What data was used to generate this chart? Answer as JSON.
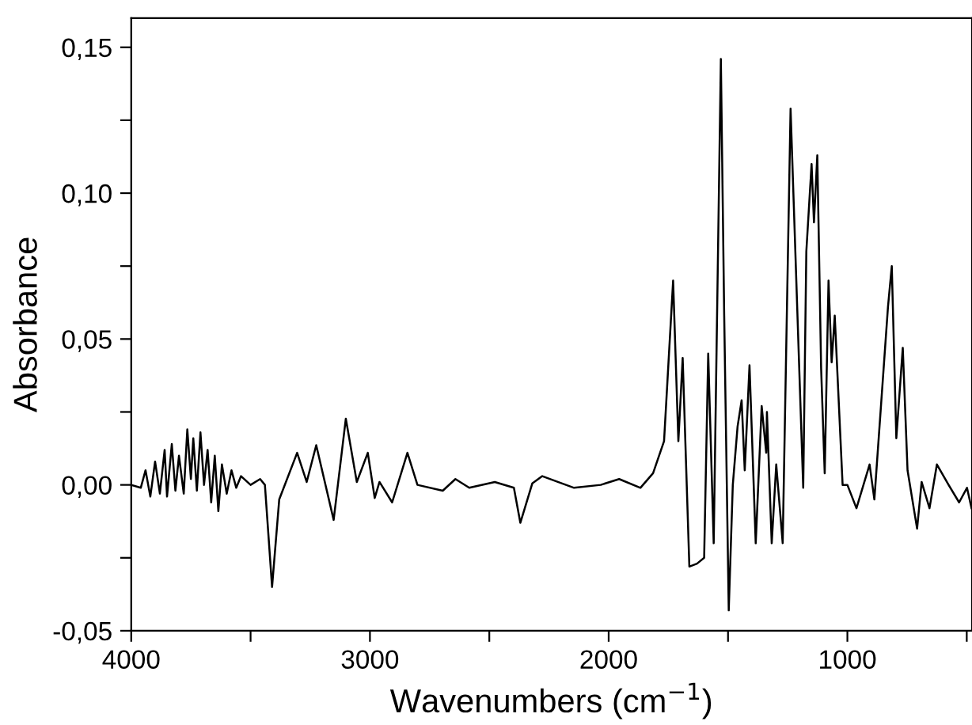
{
  "chart_data": {
    "type": "line",
    "xlabel": "Wavenumbers (cm$^{−1}$)",
    "ylabel": "Absorbance",
    "xlim": [
      4000,
      478
    ],
    "ylim": [
      -0.05,
      0.16
    ],
    "xticks": [
      {
        "value": 4000,
        "label": "4000"
      },
      {
        "value": 3500,
        "label": null
      },
      {
        "value": 3000,
        "label": "3000"
      },
      {
        "value": 2500,
        "label": null
      },
      {
        "value": 2000,
        "label": "2000"
      },
      {
        "value": 1500,
        "label": null
      },
      {
        "value": 1000,
        "label": "1000"
      },
      {
        "value": 500,
        "label": null
      }
    ],
    "yticks": [
      {
        "value": -0.05,
        "label": "-0,05"
      },
      {
        "value": -0.025,
        "label": null
      },
      {
        "value": 0,
        "label": "0,00"
      },
      {
        "value": 0.025,
        "label": null
      },
      {
        "value": 0.05,
        "label": "0,05"
      },
      {
        "value": 0.075,
        "label": null
      },
      {
        "value": 0.1,
        "label": "0,10"
      },
      {
        "value": 0.125,
        "label": null
      },
      {
        "value": 0.15,
        "label": "0,15"
      }
    ],
    "grid": false,
    "legend": false,
    "marker": "none",
    "line_style": "solid",
    "series": [
      {
        "color": "#000000",
        "x": [
          4000,
          3960,
          3940,
          3920,
          3900,
          3880,
          3860,
          3850,
          3830,
          3815,
          3800,
          3780,
          3765,
          3750,
          3740,
          3725,
          3710,
          3695,
          3680,
          3665,
          3650,
          3635,
          3620,
          3600,
          3580,
          3560,
          3540,
          3500,
          3460,
          3440,
          3410,
          3380,
          3305,
          3265,
          3225,
          3152,
          3101,
          3055,
          3009,
          2980,
          2960,
          2907,
          2843,
          2801,
          2695,
          2642,
          2584,
          2477,
          2397,
          2370,
          2320,
          2278,
          2145,
          2033,
          1956,
          1867,
          1814,
          1768,
          1730,
          1708,
          1690,
          1662,
          1630,
          1600,
          1583,
          1560,
          1530,
          1516,
          1497,
          1480,
          1460,
          1443,
          1430,
          1410,
          1384,
          1359,
          1340,
          1337,
          1317,
          1298,
          1271,
          1238,
          1185,
          1172,
          1150,
          1140,
          1126,
          1110,
          1095,
          1079,
          1066,
          1053,
          1020,
          1000,
          962,
          907,
          887,
          830,
          814,
          795,
          768,
          748,
          708,
          689,
          656,
          625,
          576,
          532,
          499,
          480
        ],
        "values": [
          0,
          -0.001,
          0.005,
          -0.004,
          0.008,
          -0.003,
          0.012,
          -0.004,
          0.014,
          -0.002,
          0.01,
          -0.003,
          0.019,
          0.002,
          0.016,
          -0.002,
          0.018,
          0,
          0.012,
          -0.006,
          0.01,
          -0.009,
          0.007,
          -0.003,
          0.005,
          -0.001,
          0.003,
          0,
          0.002,
          0,
          -0.035,
          -0.005,
          0.011,
          0.001,
          0.0136,
          -0.012,
          0.0227,
          0.001,
          0.011,
          -0.0045,
          0.001,
          -0.006,
          0.011,
          0,
          -0.002,
          0.002,
          -0.001,
          0.001,
          -0.001,
          -0.013,
          0.0005,
          0.003,
          -0.001,
          0,
          0.002,
          -0.001,
          0.004,
          0.015,
          0.07,
          0.015,
          0.0435,
          -0.028,
          -0.027,
          -0.025,
          0.045,
          -0.02,
          0.146,
          0.058,
          -0.043,
          0,
          0.02,
          0.029,
          0.005,
          0.041,
          -0.02,
          0.027,
          0.011,
          0.025,
          -0.02,
          0.007,
          -0.02,
          0.129,
          -0.001,
          0.08,
          0.11,
          0.09,
          0.113,
          0.04,
          0.004,
          0.07,
          0.042,
          0.058,
          0,
          0,
          -0.008,
          0.007,
          -0.005,
          0.061,
          0.075,
          0.016,
          0.047,
          0.005,
          -0.015,
          0.001,
          -0.008,
          0.007,
          0,
          -0.006,
          -0.001,
          -0.008
        ]
      }
    ]
  }
}
